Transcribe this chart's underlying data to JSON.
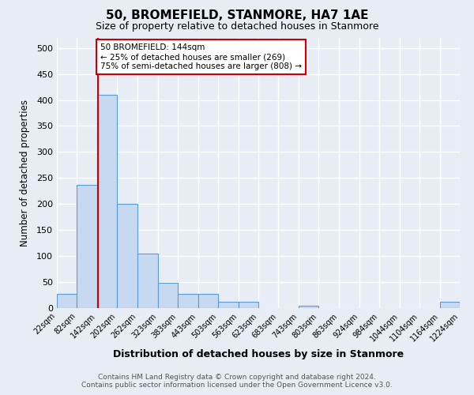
{
  "title": "50, BROMEFIELD, STANMORE, HA7 1AE",
  "subtitle": "Size of property relative to detached houses in Stanmore",
  "xlabel": "Distribution of detached houses by size in Stanmore",
  "ylabel": "Number of detached properties",
  "bar_color": "#c6d9f0",
  "bar_edge_color": "#5b9bd5",
  "bin_edges": [
    22,
    82,
    142,
    202,
    262,
    323,
    383,
    443,
    503,
    563,
    623,
    683,
    743,
    803,
    863,
    924,
    984,
    1044,
    1104,
    1164,
    1224
  ],
  "bar_heights": [
    28,
    237,
    410,
    200,
    105,
    48,
    27,
    27,
    12,
    12,
    0,
    0,
    5,
    0,
    0,
    0,
    0,
    0,
    0,
    12
  ],
  "ylim": [
    0,
    520
  ],
  "yticks": [
    0,
    50,
    100,
    150,
    200,
    250,
    300,
    350,
    400,
    450,
    500
  ],
  "xtick_labels": [
    "22sqm",
    "82sqm",
    "142sqm",
    "202sqm",
    "262sqm",
    "323sqm",
    "383sqm",
    "443sqm",
    "503sqm",
    "563sqm",
    "623sqm",
    "683sqm",
    "743sqm",
    "803sqm",
    "863sqm",
    "924sqm",
    "984sqm",
    "1044sqm",
    "1104sqm",
    "1164sqm",
    "1224sqm"
  ],
  "red_line_x": 144,
  "annotation_text": "50 BROMEFIELD: 144sqm\n← 25% of detached houses are smaller (269)\n75% of semi-detached houses are larger (808) →",
  "annotation_box_color": "#ffffff",
  "annotation_box_edge_color": "#cc0000",
  "footer_line1": "Contains HM Land Registry data © Crown copyright and database right 2024.",
  "footer_line2": "Contains public sector information licensed under the Open Government Licence v3.0.",
  "bg_color": "#e8ecf5",
  "plot_bg_color": "#e8ecf5",
  "grid_color": "#ffffff"
}
